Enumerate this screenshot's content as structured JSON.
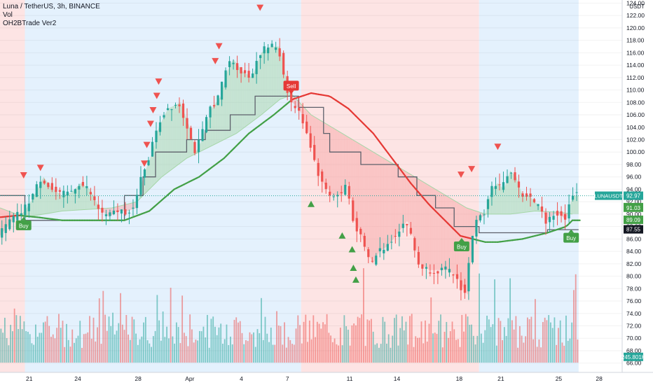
{
  "legend": {
    "title": "Luna / TetherUS, 3h, BINANCE",
    "vol": "Vol",
    "indicator": "OH2BTrade Ver2"
  },
  "chart_data": {
    "type": "candlestick",
    "symbol": "LUNAUSDT",
    "currency": "USDT",
    "ylim": [
      64.5,
      124.5
    ],
    "y_ticks": [
      66,
      68,
      70,
      72,
      74,
      76,
      78,
      80,
      82,
      84,
      86,
      88,
      90,
      92,
      94,
      96,
      98,
      100,
      102,
      104,
      106,
      108,
      110,
      112,
      114,
      116,
      118,
      120,
      122,
      124
    ],
    "x_ticks": [
      {
        "t": 0.047,
        "label": "21"
      },
      {
        "t": 0.125,
        "label": "24"
      },
      {
        "t": 0.222,
        "label": "28"
      },
      {
        "t": 0.305,
        "label": "Apr"
      },
      {
        "t": 0.388,
        "label": "4"
      },
      {
        "t": 0.462,
        "label": "7"
      },
      {
        "t": 0.562,
        "label": "11"
      },
      {
        "t": 0.638,
        "label": "14"
      },
      {
        "t": 0.738,
        "label": "18"
      },
      {
        "t": 0.805,
        "label": "21"
      },
      {
        "t": 0.898,
        "label": "25"
      },
      {
        "t": 0.963,
        "label": "28"
      }
    ],
    "background_bands": [
      {
        "from": 0.0,
        "to": 0.04,
        "trend": "bear",
        "color": "#fde4e4"
      },
      {
        "from": 0.04,
        "to": 0.484,
        "trend": "bull",
        "color": "#e4f1fd"
      },
      {
        "from": 0.484,
        "to": 0.77,
        "trend": "bear",
        "color": "#fde4e4"
      },
      {
        "from": 0.77,
        "to": 0.93,
        "trend": "bull",
        "color": "#e4f1fd"
      }
    ],
    "price_path": [
      [
        0.0,
        86.5
      ],
      [
        0.02,
        89
      ],
      [
        0.04,
        90.5
      ],
      [
        0.055,
        93
      ],
      [
        0.07,
        96
      ],
      [
        0.085,
        94
      ],
      [
        0.1,
        93
      ],
      [
        0.115,
        93.5
      ],
      [
        0.13,
        95
      ],
      [
        0.145,
        94
      ],
      [
        0.16,
        91
      ],
      [
        0.175,
        89.5
      ],
      [
        0.19,
        90.5
      ],
      [
        0.205,
        90.5
      ],
      [
        0.22,
        91
      ],
      [
        0.23,
        96
      ],
      [
        0.245,
        100
      ],
      [
        0.255,
        104
      ],
      [
        0.27,
        107
      ],
      [
        0.29,
        108
      ],
      [
        0.305,
        104
      ],
      [
        0.315,
        100
      ],
      [
        0.325,
        102
      ],
      [
        0.34,
        107
      ],
      [
        0.355,
        109
      ],
      [
        0.365,
        113
      ],
      [
        0.375,
        115
      ],
      [
        0.39,
        113
      ],
      [
        0.405,
        112
      ],
      [
        0.42,
        116
      ],
      [
        0.435,
        117
      ],
      [
        0.45,
        117
      ],
      [
        0.46,
        112
      ],
      [
        0.47,
        108
      ],
      [
        0.48,
        107
      ],
      [
        0.49,
        105
      ],
      [
        0.5,
        102
      ],
      [
        0.51,
        98
      ],
      [
        0.52,
        95
      ],
      [
        0.535,
        93
      ],
      [
        0.55,
        93
      ],
      [
        0.56,
        95
      ],
      [
        0.57,
        89
      ],
      [
        0.58,
        87
      ],
      [
        0.59,
        84
      ],
      [
        0.6,
        82
      ],
      [
        0.61,
        84
      ],
      [
        0.625,
        85
      ],
      [
        0.64,
        87
      ],
      [
        0.655,
        89
      ],
      [
        0.665,
        86
      ],
      [
        0.675,
        82
      ],
      [
        0.69,
        81
      ],
      [
        0.705,
        81
      ],
      [
        0.72,
        81
      ],
      [
        0.735,
        80
      ],
      [
        0.745,
        78
      ],
      [
        0.752,
        77
      ],
      [
        0.76,
        86
      ],
      [
        0.77,
        89
      ],
      [
        0.78,
        90
      ],
      [
        0.79,
        94
      ],
      [
        0.8,
        95
      ],
      [
        0.81,
        94
      ],
      [
        0.82,
        97
      ],
      [
        0.83,
        96
      ],
      [
        0.84,
        93
      ],
      [
        0.85,
        93
      ],
      [
        0.86,
        92
      ],
      [
        0.87,
        91
      ],
      [
        0.88,
        89
      ],
      [
        0.89,
        90
      ],
      [
        0.9,
        90
      ],
      [
        0.91,
        89
      ],
      [
        0.92,
        93
      ]
    ],
    "cloud_fast_line": [
      [
        0.0,
        91
      ],
      [
        0.04,
        89.5
      ],
      [
        0.1,
        90.5
      ],
      [
        0.18,
        91
      ],
      [
        0.22,
        92
      ],
      [
        0.26,
        96
      ],
      [
        0.3,
        99
      ],
      [
        0.34,
        101
      ],
      [
        0.38,
        103
      ],
      [
        0.42,
        106
      ],
      [
        0.45,
        108.5
      ],
      [
        0.47,
        109.2
      ],
      [
        0.5,
        106
      ],
      [
        0.55,
        103
      ],
      [
        0.6,
        100
      ],
      [
        0.65,
        97
      ],
      [
        0.7,
        94
      ],
      [
        0.75,
        91
      ],
      [
        0.78,
        90
      ],
      [
        0.82,
        90
      ],
      [
        0.86,
        90.5
      ],
      [
        0.9,
        90.3
      ],
      [
        0.92,
        90
      ]
    ],
    "trend_ma_line": [
      [
        0.0,
        89.5
      ],
      [
        0.03,
        89.8
      ],
      [
        0.06,
        89.5
      ],
      [
        0.1,
        89
      ],
      [
        0.15,
        89
      ],
      [
        0.2,
        89
      ],
      [
        0.24,
        90.5
      ],
      [
        0.28,
        94
      ],
      [
        0.32,
        96
      ],
      [
        0.36,
        99
      ],
      [
        0.4,
        103
      ],
      [
        0.44,
        106
      ],
      [
        0.47,
        108.5
      ],
      [
        0.5,
        109.5
      ],
      [
        0.53,
        109
      ],
      [
        0.56,
        107
      ],
      [
        0.6,
        103
      ],
      [
        0.63,
        99
      ],
      [
        0.66,
        95
      ],
      [
        0.69,
        91.5
      ],
      [
        0.72,
        88.5
      ],
      [
        0.74,
        86.5
      ],
      [
        0.76,
        86
      ],
      [
        0.78,
        85.5
      ],
      [
        0.8,
        85.5
      ],
      [
        0.84,
        86
      ],
      [
        0.88,
        87
      ],
      [
        0.91,
        88
      ],
      [
        0.92,
        89
      ],
      [
        0.93,
        89
      ]
    ],
    "stop_line": [
      [
        0.0,
        93
      ],
      [
        0.04,
        93
      ],
      [
        0.04,
        89
      ],
      [
        0.2,
        89
      ],
      [
        0.2,
        93
      ],
      [
        0.23,
        93
      ],
      [
        0.23,
        96
      ],
      [
        0.25,
        96
      ],
      [
        0.25,
        100
      ],
      [
        0.3,
        100
      ],
      [
        0.3,
        102
      ],
      [
        0.33,
        102
      ],
      [
        0.33,
        103.5
      ],
      [
        0.37,
        103.5
      ],
      [
        0.37,
        106
      ],
      [
        0.41,
        106
      ],
      [
        0.41,
        109
      ],
      [
        0.48,
        109
      ],
      [
        0.48,
        107.2
      ],
      [
        0.52,
        107.2
      ],
      [
        0.52,
        103
      ],
      [
        0.53,
        103
      ],
      [
        0.53,
        100
      ],
      [
        0.58,
        100
      ],
      [
        0.58,
        98
      ],
      [
        0.64,
        98
      ],
      [
        0.64,
        96
      ],
      [
        0.67,
        96
      ],
      [
        0.67,
        93
      ],
      [
        0.7,
        93
      ],
      [
        0.7,
        91
      ],
      [
        0.73,
        91
      ],
      [
        0.73,
        88
      ],
      [
        0.77,
        88
      ],
      [
        0.77,
        87
      ],
      [
        0.88,
        87
      ],
      [
        0.88,
        87.5
      ],
      [
        0.93,
        87.5
      ]
    ],
    "signals": [
      {
        "type": "buy",
        "t": 0.038,
        "price": 88.2,
        "label": "Buy"
      },
      {
        "type": "sell",
        "t": 0.468,
        "price": 110.7,
        "label": "Sell"
      },
      {
        "type": "buy",
        "t": 0.742,
        "price": 84.8,
        "label": "Buy"
      },
      {
        "type": "buy",
        "t": 0.918,
        "price": 86.2,
        "label": "Buy"
      }
    ],
    "markers_down": [
      [
        0.038,
        96.3
      ],
      [
        0.065,
        97.5
      ],
      [
        0.232,
        98.2
      ],
      [
        0.236,
        101.2
      ],
      [
        0.242,
        104.6
      ],
      [
        0.246,
        106.8
      ],
      [
        0.252,
        109.1
      ],
      [
        0.255,
        111.4
      ],
      [
        0.346,
        114.7
      ],
      [
        0.352,
        117.1
      ],
      [
        0.418,
        123.3
      ],
      [
        0.741,
        96.4
      ],
      [
        0.758,
        97.3
      ],
      [
        0.8,
        100.9
      ]
    ],
    "markers_up": [
      [
        0.5,
        91.6
      ],
      [
        0.55,
        86.5
      ],
      [
        0.566,
        84.3
      ],
      [
        0.568,
        81.3
      ],
      [
        0.572,
        79.4
      ]
    ],
    "price_labels": [
      {
        "label": "LUNAUSDT",
        "value": "92.97",
        "price": 92.97,
        "color": "#26a69a"
      },
      {
        "label": "",
        "value": "91.13",
        "price": 91.13,
        "color": "#43a047"
      },
      {
        "label": "",
        "value": "91.03",
        "price": 91.03,
        "color": "#43a047"
      },
      {
        "label": "",
        "value": "89.09",
        "price": 89.09,
        "color": "#43a047"
      },
      {
        "label": "",
        "value": "87.55",
        "price": 87.55,
        "color": "#131722"
      },
      {
        "label": "",
        "value": "245.801K",
        "price": 67.0,
        "color": "#26a69a"
      }
    ],
    "colors": {
      "bull": "#26a69a",
      "bear": "#ef5350",
      "trend_line": "#43a047",
      "sell_line": "#e53935",
      "stop_line": "#5d606b",
      "cloud_bull": "#a5d6a7",
      "cloud_bear": "#f7a6a6"
    },
    "volume_max": 100
  }
}
